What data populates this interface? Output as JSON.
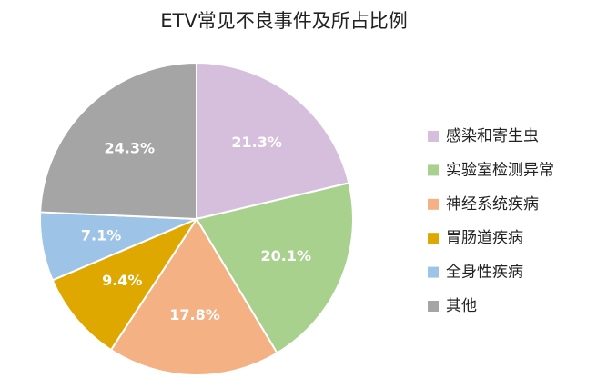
{
  "chart_data": {
    "type": "pie",
    "title": "ETV常见不良事件及所占比例",
    "categories": [
      "感染和寄生虫",
      "实验室检测异常",
      "神经系统疾病",
      "胃肠道疾病",
      "全身性疾病",
      "其他"
    ],
    "values": [
      21.3,
      20.1,
      17.8,
      9.4,
      7.1,
      24.3
    ],
    "value_labels": [
      "21.3%",
      "20.1%",
      "17.8%",
      "9.4%",
      "7.1%",
      "24.3%"
    ],
    "colors": [
      "#d5bfdc",
      "#a9d18e",
      "#f4b183",
      "#dfa800",
      "#9dc3e6",
      "#a5a5a5"
    ],
    "legend": "right"
  }
}
